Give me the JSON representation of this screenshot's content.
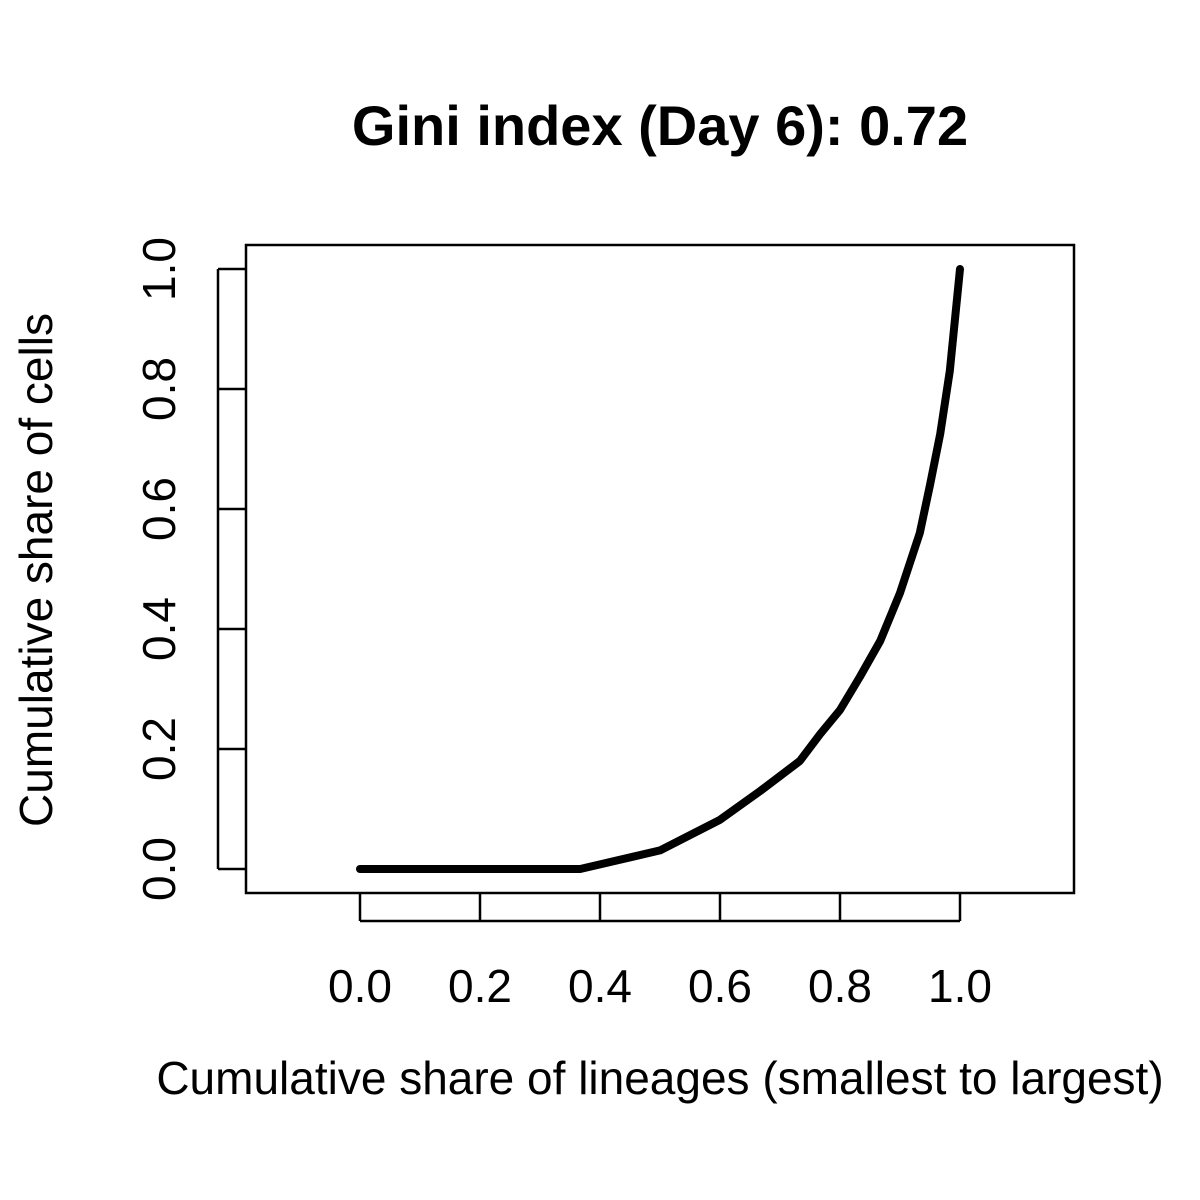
{
  "chart_data": {
    "type": "line",
    "title": "Gini index (Day 6): 0.72",
    "xlabel": "Cumulative share of lineages (smallest to largest)",
    "ylabel": "Cumulative share of cells",
    "xlim": [
      -0.19,
      1.19
    ],
    "ylim": [
      -0.04,
      1.04
    ],
    "xticks": [
      0.0,
      0.2,
      0.4,
      0.6,
      0.8,
      1.0
    ],
    "xtick_labels": [
      "0.0",
      "0.2",
      "0.4",
      "0.6",
      "0.8",
      "1.0"
    ],
    "yticks": [
      0.0,
      0.2,
      0.4,
      0.6,
      0.8,
      1.0
    ],
    "ytick_labels": [
      "0.0",
      "0.2",
      "0.4",
      "0.6",
      "0.8",
      "1.0"
    ],
    "grid": false,
    "line_color": "#000000",
    "series": [
      {
        "x": [
          0.0,
          0.367,
          0.5,
          0.6,
          0.667,
          0.733,
          0.767,
          0.8,
          0.833,
          0.867,
          0.9,
          0.933,
          0.95,
          0.967,
          0.983,
          1.0
        ],
        "y": [
          0.0,
          0.0,
          0.031,
          0.082,
          0.13,
          0.18,
          0.225,
          0.265,
          0.32,
          0.38,
          0.46,
          0.56,
          0.64,
          0.725,
          0.83,
          1.0
        ]
      }
    ]
  }
}
